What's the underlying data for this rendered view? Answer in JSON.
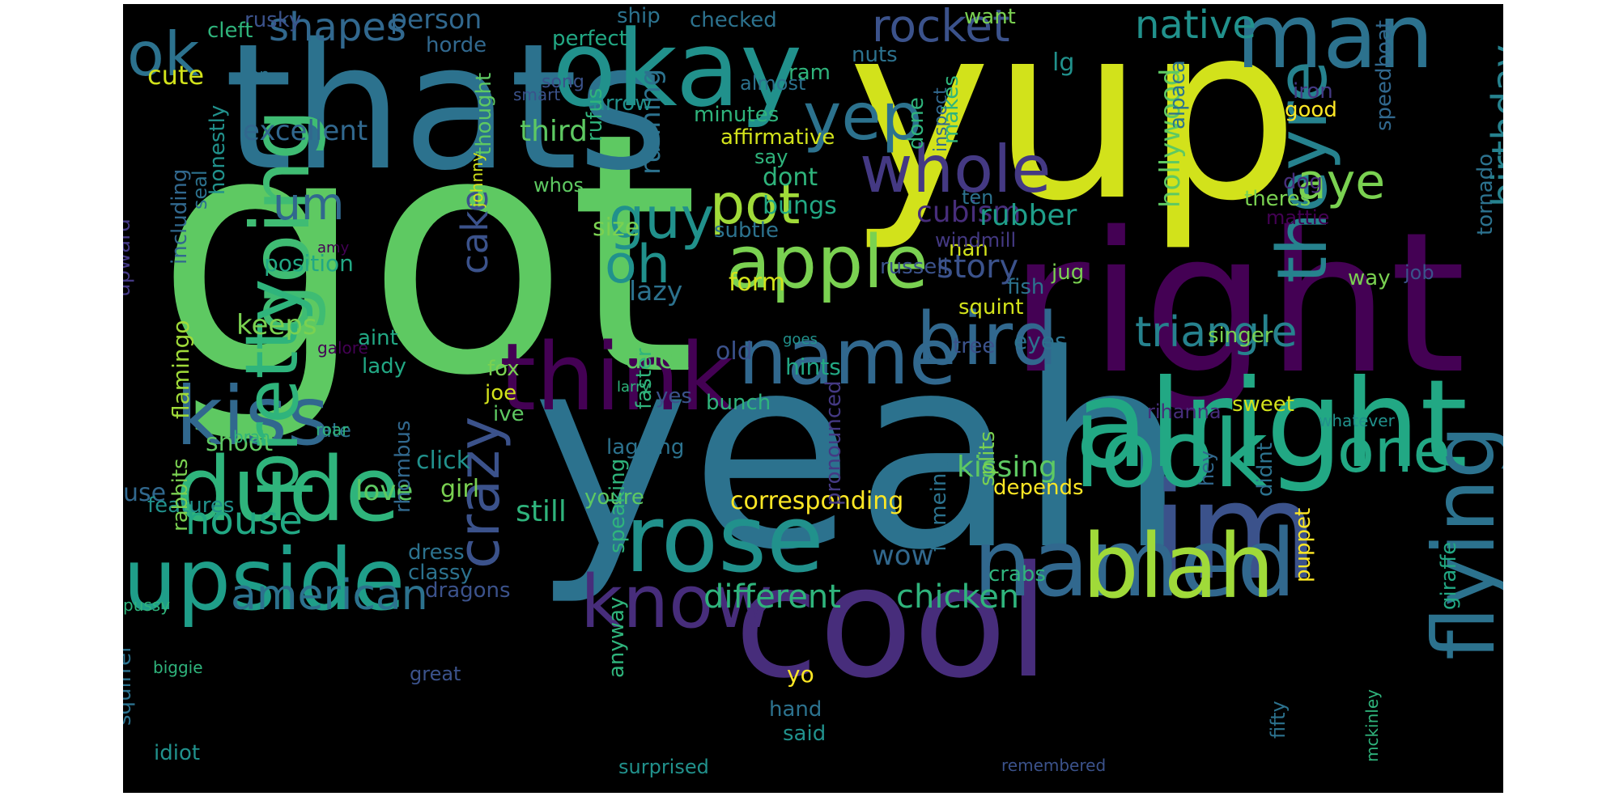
{
  "figure": {
    "background": "#000000",
    "page_background": "#ffffff",
    "colormap": "viridis"
  },
  "words": [
    {
      "text": "got",
      "color": "#5ec962"
    },
    {
      "text": "yup",
      "color": "#d2e21b"
    },
    {
      "text": "yeah",
      "color": "#2c728e"
    },
    {
      "text": "thats",
      "color": "#2c728e"
    },
    {
      "text": "right",
      "color": "#440154"
    },
    {
      "text": "cool",
      "color": "#472d7b"
    },
    {
      "text": "okay",
      "color": "#21918c"
    },
    {
      "text": "alright",
      "color": "#22a884"
    },
    {
      "text": "im",
      "color": "#3b528b"
    },
    {
      "text": "named",
      "color": "#31688e"
    },
    {
      "text": "man",
      "color": "#2c728e"
    },
    {
      "text": "think",
      "color": "#440154"
    },
    {
      "text": "apple",
      "color": "#7ad151"
    },
    {
      "text": "blah",
      "color": "#a0da39"
    },
    {
      "text": "look",
      "color": "#22a884"
    },
    {
      "text": "dude",
      "color": "#2fb47c"
    },
    {
      "text": "upside",
      "color": "#1f9e89"
    },
    {
      "text": "kiss",
      "color": "#31688e"
    },
    {
      "text": "rose",
      "color": "#21918c"
    },
    {
      "text": "name",
      "color": "#31688e"
    },
    {
      "text": "flying",
      "color": "#2c728e"
    },
    {
      "text": "whole",
      "color": "#443983"
    },
    {
      "text": "theyre",
      "color": "#26828e"
    },
    {
      "text": "going",
      "color": "#3fbc73"
    },
    {
      "text": "pretty",
      "color": "#2fb47c"
    },
    {
      "text": "crazy",
      "color": "#3b528b"
    },
    {
      "text": "bird",
      "color": "#31688e"
    },
    {
      "text": "know",
      "color": "#472d7b"
    },
    {
      "text": "one",
      "color": "#22a884"
    },
    {
      "text": "ok",
      "color": "#2c728e"
    },
    {
      "text": "yep",
      "color": "#2c728e"
    },
    {
      "text": "guy",
      "color": "#21918c"
    },
    {
      "text": "oh",
      "color": "#21918c"
    },
    {
      "text": "pot",
      "color": "#a0da39"
    },
    {
      "text": "aye",
      "color": "#7ad151"
    },
    {
      "text": "um",
      "color": "#31688e"
    },
    {
      "text": "american",
      "color": "#2c728e"
    },
    {
      "text": "triangle",
      "color": "#26828e"
    },
    {
      "text": "birthday",
      "color": "#26828e"
    },
    {
      "text": "native",
      "color": "#21918c"
    },
    {
      "text": "rocket",
      "color": "#3b528b"
    },
    {
      "text": "shapes",
      "color": "#31688e"
    },
    {
      "text": "house",
      "color": "#22a884"
    },
    {
      "text": "cake",
      "color": "#3b528b"
    },
    {
      "text": "hollywood",
      "color": "#5ec962"
    },
    {
      "text": "chicken",
      "color": "#2fb47c"
    },
    {
      "text": "different",
      "color": "#2fb47c"
    },
    {
      "text": "kissing",
      "color": "#5ec962"
    },
    {
      "text": "cubism",
      "color": "#472d7b"
    },
    {
      "text": "rubber",
      "color": "#1f9e89"
    },
    {
      "text": "story",
      "color": "#3b528b"
    },
    {
      "text": "excellent",
      "color": "#31688e"
    },
    {
      "text": "person",
      "color": "#31688e"
    },
    {
      "text": "third",
      "color": "#5ec962"
    },
    {
      "text": "wow",
      "color": "#31688e"
    },
    {
      "text": "still",
      "color": "#2fb47c"
    },
    {
      "text": "love",
      "color": "#5ec962"
    },
    {
      "text": "running",
      "color": "#2c728e"
    },
    {
      "text": "form",
      "color": "#d2e21b"
    },
    {
      "text": "lazy",
      "color": "#2c728e"
    },
    {
      "text": "duck",
      "color": "#5ec962"
    },
    {
      "text": "keeps",
      "color": "#7ad151"
    },
    {
      "text": "position",
      "color": "#22a884"
    },
    {
      "text": "dont",
      "color": "#2fb47c"
    },
    {
      "text": "bungs",
      "color": "#22a884"
    },
    {
      "text": "size",
      "color": "#7ad151"
    },
    {
      "text": "old",
      "color": "#3b528b"
    },
    {
      "text": "hints",
      "color": "#22a884"
    },
    {
      "text": "corresponding",
      "color": "#fde725"
    },
    {
      "text": "cute",
      "color": "#d2e21b"
    },
    {
      "text": "lg",
      "color": "#21918c"
    },
    {
      "text": "flamingo",
      "color": "#a0da39"
    },
    {
      "text": "shoot",
      "color": "#5ec962"
    },
    {
      "text": "click",
      "color": "#21918c"
    },
    {
      "text": "girl",
      "color": "#7ad151"
    },
    {
      "text": "use",
      "color": "#31688e"
    },
    {
      "text": "features",
      "color": "#21918c"
    },
    {
      "text": "dress",
      "color": "#2c728e"
    },
    {
      "text": "classy",
      "color": "#2c728e"
    },
    {
      "text": "dragons",
      "color": "#3b528b"
    },
    {
      "text": "crabs",
      "color": "#2fb47c"
    },
    {
      "text": "depends",
      "color": "#fde725"
    },
    {
      "text": "youre",
      "color": "#5ec962"
    },
    {
      "text": "lagging",
      "color": "#2c728e"
    },
    {
      "text": "bunch",
      "color": "#2fb47c"
    },
    {
      "text": "yes",
      "color": "#3b528b"
    },
    {
      "text": "ive",
      "color": "#5ec962"
    },
    {
      "text": "joe",
      "color": "#d2e21b"
    },
    {
      "text": "fox",
      "color": "#7ad151"
    },
    {
      "text": "lady",
      "color": "#22a884"
    },
    {
      "text": "aint",
      "color": "#22a884"
    },
    {
      "text": "ate",
      "color": "#2c728e"
    },
    {
      "text": "tree",
      "color": "#3b528b"
    },
    {
      "text": "eyes",
      "color": "#2c728e"
    },
    {
      "text": "singer",
      "color": "#7ad151"
    },
    {
      "text": "sweet",
      "color": "#d2e21b"
    },
    {
      "text": "rihanna",
      "color": "#472d7b"
    },
    {
      "text": "whatever",
      "color": "#21918c"
    },
    {
      "text": "didnt",
      "color": "#2c728e"
    },
    {
      "text": "jug",
      "color": "#7ad151"
    },
    {
      "text": "fish",
      "color": "#2c728e"
    },
    {
      "text": "job",
      "color": "#3b528b"
    },
    {
      "text": "way",
      "color": "#7ad151"
    },
    {
      "text": "russell",
      "color": "#3b528b"
    },
    {
      "text": "squint",
      "color": "#d2e21b"
    },
    {
      "text": "nah",
      "color": "#d2e21b"
    },
    {
      "text": "subtle",
      "color": "#2c728e"
    },
    {
      "text": "windmill",
      "color": "#443983"
    },
    {
      "text": "mattie",
      "color": "#440154"
    },
    {
      "text": "theres",
      "color": "#7ad151"
    },
    {
      "text": "dog",
      "color": "#472d7b"
    },
    {
      "text": "ten",
      "color": "#2c728e"
    },
    {
      "text": "whos",
      "color": "#5ec962"
    },
    {
      "text": "say",
      "color": "#2fb47c"
    },
    {
      "text": "affirmative",
      "color": "#d2e21b"
    },
    {
      "text": "arrow",
      "color": "#21918c"
    },
    {
      "text": "minutes",
      "color": "#2fb47c"
    },
    {
      "text": "almost",
      "color": "#2c728e"
    },
    {
      "text": "ram",
      "color": "#2fb47c"
    },
    {
      "text": "song",
      "color": "#3b528b"
    },
    {
      "text": "smart",
      "color": "#3b528b"
    },
    {
      "text": "perfect",
      "color": "#22a884"
    },
    {
      "text": "checked",
      "color": "#2c728e"
    },
    {
      "text": "ship",
      "color": "#2c728e"
    },
    {
      "text": "want",
      "color": "#7ad151"
    },
    {
      "text": "rusky",
      "color": "#3b528b"
    },
    {
      "text": "cleft",
      "color": "#2fb47c"
    },
    {
      "text": "horde",
      "color": "#31688e"
    },
    {
      "text": "lion",
      "color": "#2c728e"
    },
    {
      "text": "nuts",
      "color": "#2c728e"
    },
    {
      "text": "makes",
      "color": "#2fb47c"
    },
    {
      "text": "inspect",
      "color": "#31688e"
    },
    {
      "text": "done",
      "color": "#2fb47c"
    },
    {
      "text": "alpaca",
      "color": "#2c728e"
    },
    {
      "text": "iron",
      "color": "#443983"
    },
    {
      "text": "good",
      "color": "#fde725"
    },
    {
      "text": "speedboat",
      "color": "#31688e"
    },
    {
      "text": "tornado",
      "color": "#2c728e"
    },
    {
      "text": "thought",
      "color": "#5ec962"
    },
    {
      "text": "rufus",
      "color": "#2fb47c"
    },
    {
      "text": "johnny",
      "color": "#d2e21b"
    },
    {
      "text": "honestly",
      "color": "#21918c"
    },
    {
      "text": "seal",
      "color": "#2c728e"
    },
    {
      "text": "amy",
      "color": "#440154"
    },
    {
      "text": "upward",
      "color": "#443983"
    },
    {
      "text": "including",
      "color": "#31688e"
    },
    {
      "text": "galore",
      "color": "#440154"
    },
    {
      "text": "larry",
      "color": "#2fb47c"
    },
    {
      "text": "goes",
      "color": "#21918c"
    },
    {
      "text": "brah",
      "color": "#2fb47c"
    },
    {
      "text": "roar",
      "color": "#2fb47c"
    },
    {
      "text": "rabbits",
      "color": "#7ad151"
    },
    {
      "text": "rhombus",
      "color": "#31688e"
    },
    {
      "text": "speaking",
      "color": "#2fb47c"
    },
    {
      "text": "faster",
      "color": "#2fb47c"
    },
    {
      "text": "pronounced",
      "color": "#443983"
    },
    {
      "text": "flameing",
      "color": "#2c728e"
    },
    {
      "text": "splits",
      "color": "#7ad151"
    },
    {
      "text": "hey",
      "color": "#31688e"
    },
    {
      "text": "giraffe",
      "color": "#22a884"
    },
    {
      "text": "pussy",
      "color": "#2fb47c"
    },
    {
      "text": "squirrel",
      "color": "#2c728e"
    },
    {
      "text": "idiot",
      "color": "#21918c"
    },
    {
      "text": "biggie",
      "color": "#2fb47c"
    },
    {
      "text": "great",
      "color": "#3b528b"
    },
    {
      "text": "anyway",
      "color": "#2fb47c"
    },
    {
      "text": "hand",
      "color": "#2c728e"
    },
    {
      "text": "yo",
      "color": "#fde725"
    },
    {
      "text": "said",
      "color": "#21918c"
    },
    {
      "text": "surprised",
      "color": "#21918c"
    },
    {
      "text": "fifty",
      "color": "#2c728e"
    },
    {
      "text": "mckinley",
      "color": "#2fb47c"
    },
    {
      "text": "remembered",
      "color": "#3b528b"
    },
    {
      "text": "puppet",
      "color": "#fde725"
    }
  ]
}
